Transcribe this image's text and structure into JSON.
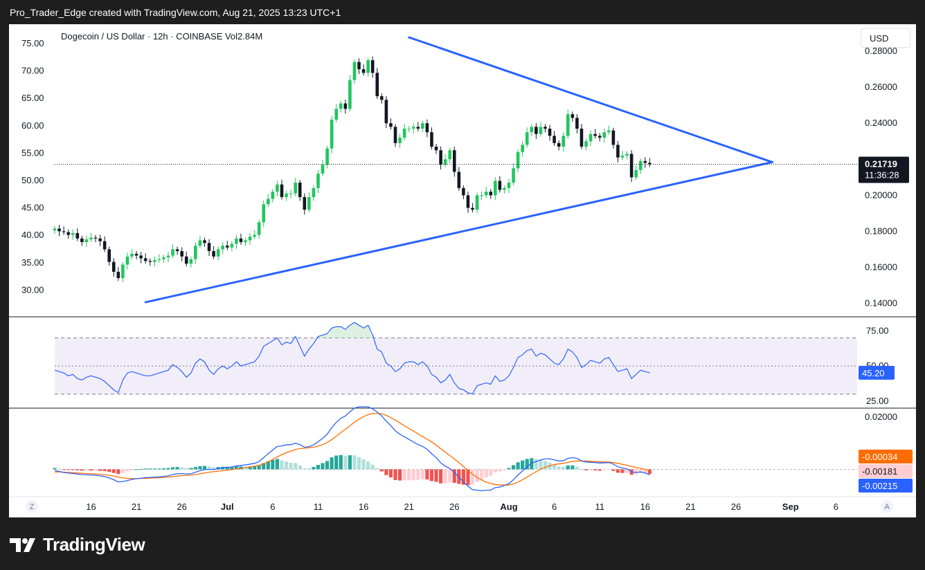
{
  "header": "Pro_Trader_Edge created with TradingView.com, Aug 21, 2025 13:23 UTC+1",
  "symbol_line": "Dogecoin / US Dollar · 12h · COINBASE  Vol2.84M",
  "currency_label": "USD",
  "footer_brand": "TradingView",
  "colors": {
    "up": "#22c55e",
    "down": "#131722",
    "trendline": "#2962ff",
    "rsi": "#2962ff",
    "macd": "#2962ff",
    "signal": "#ff6d00",
    "hist_pos": "#26a69a",
    "hist_neg": "#ef5350"
  },
  "chart_data": [
    {
      "type": "candlestick",
      "name": "price",
      "right_axis_ticks": [
        "0.28000",
        "0.26000",
        "0.24000",
        "0.20000",
        "0.18000",
        "0.16000",
        "0.14000"
      ],
      "left_axis_ticks": [
        "75.00",
        "70.00",
        "65.00",
        "60.00",
        "55.00",
        "50.00",
        "45.00",
        "40.00",
        "35.00",
        "30.00"
      ],
      "y_range": [
        0.1325,
        0.295
      ],
      "current_price": "0.21719",
      "countdown": "11:36:28",
      "trendlines": [
        {
          "from": [
            "Jun 22",
            0.1406
          ],
          "to": [
            "Aug 30",
            0.2184
          ]
        },
        {
          "from": [
            "Jul 21",
            0.2877
          ],
          "to": [
            "Aug 30",
            0.2184
          ]
        }
      ],
      "closes": [
        0.1815,
        0.18,
        0.1795,
        0.178,
        0.179,
        0.176,
        0.174,
        0.1755,
        0.1765,
        0.176,
        0.1745,
        0.17,
        0.163,
        0.1575,
        0.154,
        0.1615,
        0.166,
        0.1675,
        0.1665,
        0.165,
        0.1635,
        0.163,
        0.164,
        0.1645,
        0.1655,
        0.1665,
        0.17,
        0.169,
        0.166,
        0.162,
        0.1645,
        0.172,
        0.175,
        0.1735,
        0.169,
        0.166,
        0.17,
        0.172,
        0.171,
        0.173,
        0.176,
        0.174,
        0.175,
        0.177,
        0.178,
        0.185,
        0.195,
        0.198,
        0.202,
        0.206,
        0.199,
        0.201,
        0.201,
        0.207,
        0.199,
        0.192,
        0.199,
        0.204,
        0.212,
        0.217,
        0.226,
        0.242,
        0.248,
        0.251,
        0.248,
        0.264,
        0.274,
        0.27,
        0.268,
        0.275,
        0.268,
        0.255,
        0.253,
        0.24,
        0.238,
        0.229,
        0.232,
        0.237,
        0.237,
        0.238,
        0.237,
        0.24,
        0.235,
        0.227,
        0.225,
        0.217,
        0.22,
        0.225,
        0.213,
        0.204,
        0.2,
        0.193,
        0.192,
        0.2,
        0.2,
        0.202,
        0.2,
        0.208,
        0.203,
        0.204,
        0.207,
        0.215,
        0.224,
        0.228,
        0.235,
        0.238,
        0.234,
        0.238,
        0.237,
        0.233,
        0.229,
        0.227,
        0.233,
        0.245,
        0.243,
        0.237,
        0.227,
        0.23,
        0.234,
        0.233,
        0.232,
        0.235,
        0.236,
        0.228,
        0.221,
        0.222,
        0.223,
        0.21,
        0.214,
        0.219,
        0.218,
        0.2172
      ]
    },
    {
      "type": "line",
      "name": "RSI",
      "levels": [
        70,
        50,
        30
      ],
      "axis_ticks": [
        "75.00",
        "25.00"
      ],
      "hidden_tick": "50.00",
      "current_value": "45.20",
      "y_range": [
        20,
        85
      ],
      "values": [
        47,
        46,
        45,
        43,
        44,
        41,
        40,
        42,
        43,
        42,
        41,
        39,
        36,
        33,
        31,
        40,
        45,
        46,
        45,
        44,
        43,
        43,
        44,
        45,
        46,
        47,
        51,
        49,
        46,
        42,
        45,
        52,
        55,
        53,
        47,
        44,
        48,
        50,
        48,
        50,
        53,
        50,
        51,
        52,
        53,
        57,
        64,
        66,
        68,
        70,
        65,
        67,
        66,
        71,
        64,
        57,
        62,
        66,
        71,
        72,
        73,
        77,
        78,
        78,
        76,
        79,
        81,
        79,
        77,
        79,
        72,
        62,
        60,
        52,
        50,
        46,
        48,
        52,
        53,
        53,
        51,
        53,
        50,
        44,
        42,
        38,
        40,
        44,
        38,
        34,
        33,
        31,
        30,
        36,
        37,
        38,
        37,
        43,
        39,
        40,
        43,
        49,
        56,
        58,
        61,
        62,
        57,
        59,
        58,
        55,
        52,
        51,
        55,
        62,
        60,
        56,
        49,
        51,
        54,
        53,
        52,
        55,
        56,
        51,
        46,
        47,
        48,
        41,
        44,
        47,
        46,
        45.2
      ]
    },
    {
      "type": "macd",
      "name": "MACD",
      "axis_ticks": [
        "0.02000"
      ],
      "y_range": [
        -0.0105,
        0.0235
      ],
      "macd_label": "-0.00215",
      "signal_label": "-0.00034",
      "hist_label": "-0.00181",
      "macd_values": [
        -0.0005,
        -0.0008,
        -0.0012,
        -0.0014,
        -0.0016,
        -0.0018,
        -0.002,
        -0.0021,
        -0.0022,
        -0.0023,
        -0.0025,
        -0.0028,
        -0.0033,
        -0.004,
        -0.0048,
        -0.0047,
        -0.0043,
        -0.0039,
        -0.0036,
        -0.0034,
        -0.0032,
        -0.0031,
        -0.003,
        -0.0029,
        -0.0027,
        -0.0025,
        -0.002,
        -0.0017,
        -0.0016,
        -0.0018,
        -0.0017,
        -0.0011,
        -0.0005,
        -0.0001,
        0.0,
        -0.0001,
        0.0002,
        0.0005,
        0.0007,
        0.0009,
        0.0013,
        0.0015,
        0.0017,
        0.002,
        0.0023,
        0.003,
        0.0045,
        0.006,
        0.0074,
        0.0088,
        0.009,
        0.0094,
        0.0095,
        0.01,
        0.0095,
        0.0085,
        0.0087,
        0.0094,
        0.0106,
        0.0119,
        0.0135,
        0.016,
        0.018,
        0.0196,
        0.0205,
        0.0221,
        0.0235,
        0.024,
        0.024,
        0.024,
        0.0232,
        0.022,
        0.0205,
        0.0185,
        0.0168,
        0.0148,
        0.0135,
        0.0125,
        0.0115,
        0.0105,
        0.0095,
        0.0088,
        0.0077,
        0.006,
        0.0045,
        0.0025,
        0.0012,
        0.0003,
        -0.0012,
        -0.003,
        -0.0048,
        -0.0065,
        -0.0078,
        -0.008,
        -0.0082,
        -0.008,
        -0.008,
        -0.007,
        -0.0068,
        -0.0062,
        -0.0055,
        -0.004,
        -0.0022,
        -0.0006,
        0.001,
        0.0024,
        0.003,
        0.0036,
        0.004,
        0.004,
        0.0036,
        0.0032,
        0.0033,
        0.0042,
        0.0045,
        0.0042,
        0.0032,
        0.0028,
        0.0027,
        0.0026,
        0.0024,
        0.0025,
        0.0026,
        0.002,
        0.001,
        0.0005,
        0.0002,
        -0.001,
        -0.0012,
        -0.001,
        -0.0014,
        -0.0021
      ],
      "signal_values": [
        -0.001,
        -0.001,
        -0.0011,
        -0.0012,
        -0.0013,
        -0.0014,
        -0.0015,
        -0.0016,
        -0.0017,
        -0.0018,
        -0.0019,
        -0.0021,
        -0.0023,
        -0.0026,
        -0.003,
        -0.0033,
        -0.0035,
        -0.0035,
        -0.0036,
        -0.0035,
        -0.0035,
        -0.0034,
        -0.0033,
        -0.0032,
        -0.0031,
        -0.003,
        -0.0028,
        -0.0026,
        -0.0024,
        -0.0023,
        -0.0022,
        -0.002,
        -0.0017,
        -0.0014,
        -0.0011,
        -0.0009,
        -0.0007,
        -0.0005,
        -0.0003,
        -0.0001,
        0.0002,
        0.0004,
        0.0007,
        0.0009,
        0.0012,
        0.0015,
        0.0021,
        0.0029,
        0.0038,
        0.0048,
        0.0056,
        0.0064,
        0.007,
        0.0076,
        0.008,
        0.0081,
        0.0083,
        0.0085,
        0.0089,
        0.0095,
        0.0103,
        0.0114,
        0.0127,
        0.0141,
        0.0154,
        0.0167,
        0.0181,
        0.0193,
        0.0202,
        0.021,
        0.0214,
        0.0215,
        0.0213,
        0.0207,
        0.0199,
        0.0189,
        0.0178,
        0.0167,
        0.0157,
        0.0147,
        0.0136,
        0.0126,
        0.0116,
        0.0105,
        0.0093,
        0.0079,
        0.0066,
        0.0053,
        0.004,
        0.0026,
        0.0011,
        -0.0004,
        -0.0019,
        -0.0031,
        -0.0041,
        -0.0049,
        -0.0055,
        -0.0058,
        -0.006,
        -0.0061,
        -0.006,
        -0.0056,
        -0.0049,
        -0.004,
        -0.003,
        -0.0019,
        -0.0009,
        0.0,
        0.0008,
        0.0014,
        0.0018,
        0.0021,
        0.0023,
        0.0027,
        0.003,
        0.0032,
        0.0032,
        0.0032,
        0.0031,
        0.003,
        0.0029,
        0.0028,
        0.0028,
        0.0026,
        0.0023,
        0.0019,
        0.0016,
        0.0011,
        0.0007,
        0.0004,
        0.0,
        -0.0003
      ]
    }
  ],
  "time_axis": {
    "labels": [
      "16",
      "21",
      "26",
      "Jul",
      "6",
      "11",
      "16",
      "21",
      "26",
      "Aug",
      "6",
      "11",
      "16",
      "21",
      "26",
      "Sep",
      "6"
    ],
    "bold_labels": [
      "Jul",
      "Aug",
      "Sep"
    ],
    "start_date": "Jun 12",
    "last_bar_date": "Aug 21",
    "zoom_left": "Z",
    "zoom_right": "A"
  }
}
